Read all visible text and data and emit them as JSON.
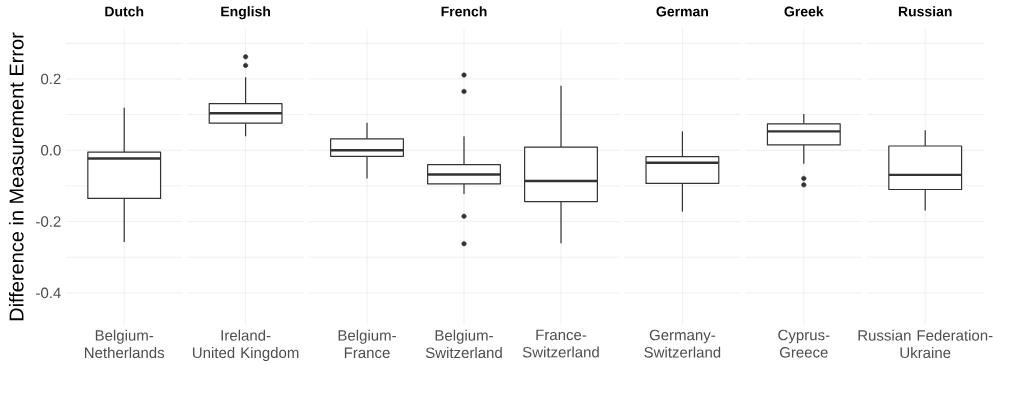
{
  "chart_data": [
    {
      "type": "box",
      "title": "Dutch",
      "ylabel": "Difference in Measurement Error",
      "categories": [
        "Belgium-Netherlands"
      ],
      "boxes": [
        {
          "low": -0.257,
          "q1": -0.135,
          "median": -0.023,
          "q3": -0.005,
          "high": 0.119
        }
      ],
      "ylim": [
        -0.49,
        0.34
      ],
      "yticks": [
        {
          "value": -0.4,
          "label": "-0.4"
        },
        {
          "value": -0.3,
          "label": null
        },
        {
          "value": -0.2,
          "label": "-0.2"
        },
        {
          "value": -0.1,
          "label": null
        },
        {
          "value": 0,
          "label": "0.0"
        },
        {
          "value": 0.1,
          "label": null
        },
        {
          "value": 0.2,
          "label": "0.2"
        },
        {
          "value": 0.3,
          "label": null
        }
      ],
      "grid": true
    },
    {
      "type": "box",
      "title": "English",
      "categories": [
        "Ireland-United Kingdom"
      ],
      "boxes": [
        {
          "low": 0.039,
          "q1": 0.076,
          "median": 0.104,
          "q3": 0.131,
          "high": 0.205,
          "outliers": [
            0.238,
            0.262
          ]
        }
      ],
      "ylim": [
        -0.49,
        0.34
      ],
      "yticks": [
        {
          "value": -0.4,
          "label": null
        },
        {
          "value": -0.3,
          "label": null
        },
        {
          "value": -0.2,
          "label": null
        },
        {
          "value": -0.1,
          "label": null
        },
        {
          "value": 0,
          "label": null
        },
        {
          "value": 0.1,
          "label": null
        },
        {
          "value": 0.2,
          "label": null
        },
        {
          "value": 0.3,
          "label": null
        }
      ],
      "grid": true,
      "tick_labels": "x"
    },
    {
      "type": "box",
      "title": "French",
      "categories": [
        "Belgium-France",
        "Belgium-Switzerland",
        "France-Switzerland"
      ],
      "boxes": [
        {
          "low": -0.079,
          "q1": -0.017,
          "median": 0.0,
          "q3": 0.032,
          "high": 0.077
        },
        {
          "low": -0.123,
          "q1": -0.094,
          "median": -0.068,
          "q3": -0.04,
          "high": 0.039,
          "outliers": [
            -0.262,
            -0.185,
            0.165,
            0.211
          ]
        },
        {
          "low": -0.261,
          "q1": -0.144,
          "median": -0.086,
          "q3": 0.009,
          "high": 0.181
        }
      ],
      "ylim": [
        -0.49,
        0.34
      ],
      "yticks": [
        {
          "value": -0.4,
          "label": null
        },
        {
          "value": -0.3,
          "label": null
        },
        {
          "value": -0.2,
          "label": null
        },
        {
          "value": -0.1,
          "label": null
        },
        {
          "value": 0,
          "label": null
        },
        {
          "value": 0.1,
          "label": null
        },
        {
          "value": 0.2,
          "label": null
        },
        {
          "value": 0.3,
          "label": null
        }
      ],
      "grid": true,
      "tick_labels": "x"
    },
    {
      "type": "box",
      "title": "German",
      "categories": [
        "Germany-Switzerland"
      ],
      "boxes": [
        {
          "low": -0.172,
          "q1": -0.093,
          "median": -0.035,
          "q3": -0.018,
          "high": 0.053
        }
      ],
      "ylim": [
        -0.49,
        0.34
      ],
      "yticks": [
        {
          "value": -0.4,
          "label": null
        },
        {
          "value": -0.3,
          "label": null
        },
        {
          "value": -0.2,
          "label": null
        },
        {
          "value": -0.1,
          "label": null
        },
        {
          "value": 0,
          "label": null
        },
        {
          "value": 0.1,
          "label": null
        },
        {
          "value": 0.2,
          "label": null
        },
        {
          "value": 0.3,
          "label": null
        }
      ],
      "grid": true,
      "tick_labels": "x"
    },
    {
      "type": "box",
      "title": "Greek",
      "categories": [
        "Cyprus-Greece"
      ],
      "boxes": [
        {
          "low": -0.038,
          "q1": 0.015,
          "median": 0.053,
          "q3": 0.074,
          "high": 0.102,
          "outliers": [
            -0.097,
            -0.079
          ]
        }
      ],
      "ylim": [
        -0.49,
        0.34
      ],
      "yticks": [
        {
          "value": -0.4,
          "label": null
        },
        {
          "value": -0.3,
          "label": null
        },
        {
          "value": -0.2,
          "label": null
        },
        {
          "value": -0.1,
          "label": null
        },
        {
          "value": 0,
          "label": null
        },
        {
          "value": 0.1,
          "label": null
        },
        {
          "value": 0.2,
          "label": null
        },
        {
          "value": 0.3,
          "label": null
        }
      ],
      "grid": true,
      "tick_labels": "x"
    },
    {
      "type": "box",
      "title": "Russian",
      "categories": [
        "Russian Federation-Ukraine"
      ],
      "boxes": [
        {
          "low": -0.169,
          "q1": -0.11,
          "median": -0.069,
          "q3": 0.012,
          "high": 0.056
        }
      ],
      "ylim": [
        -0.49,
        0.34
      ],
      "yticks": [
        {
          "value": -0.4,
          "label": null
        },
        {
          "value": -0.3,
          "label": null
        },
        {
          "value": -0.2,
          "label": null
        },
        {
          "value": -0.1,
          "label": null
        },
        {
          "value": 0,
          "label": null
        },
        {
          "value": 0.1,
          "label": null
        },
        {
          "value": 0.2,
          "label": null
        },
        {
          "value": 0.3,
          "label": null
        }
      ],
      "grid": true,
      "tick_labels": "x"
    }
  ]
}
